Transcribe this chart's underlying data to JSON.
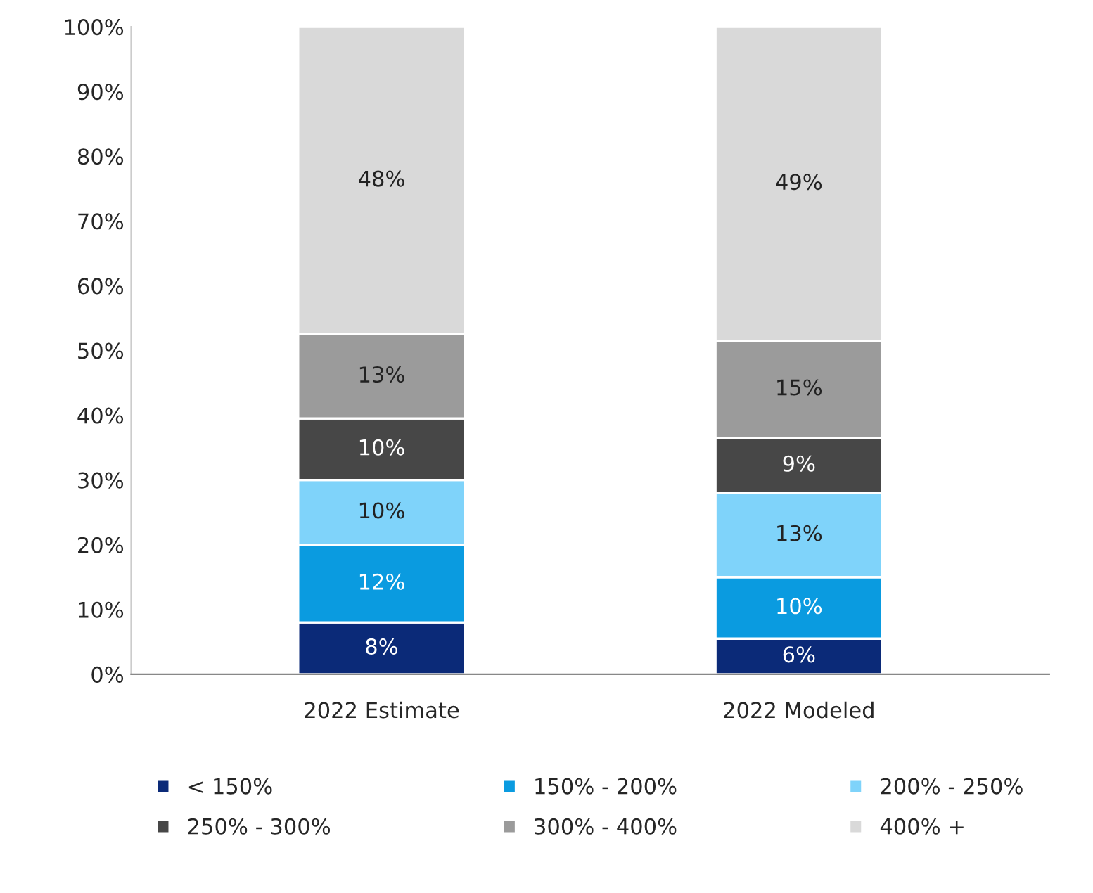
{
  "chart_data": {
    "type": "bar",
    "stacked": true,
    "categories": [
      "2022 Estimate",
      "2022 Modeled"
    ],
    "series": [
      {
        "name": "< 150%",
        "color": "#0b2a78",
        "values": [
          8,
          5.5
        ],
        "value_labels": [
          "8%",
          "6%"
        ]
      },
      {
        "name": "150% - 200%",
        "color": "#0a9be0",
        "values": [
          12,
          9.5
        ],
        "value_labels": [
          "12%",
          "10%"
        ]
      },
      {
        "name": "200% - 250%",
        "color": "#7fd3fa",
        "values": [
          10,
          13
        ],
        "value_labels": [
          "10%",
          "13%"
        ]
      },
      {
        "name": "250% - 300%",
        "color": "#474747",
        "values": [
          9.5,
          8.5
        ],
        "value_labels": [
          "10%",
          "9%"
        ]
      },
      {
        "name": "300% - 400%",
        "color": "#9b9b9b",
        "values": [
          13,
          15
        ],
        "value_labels": [
          "13%",
          "15%"
        ]
      },
      {
        "name": "400% +",
        "color": "#d9d9d9",
        "values": [
          47.5,
          48.5
        ],
        "value_labels": [
          "48%",
          "49%"
        ]
      }
    ],
    "ylim": [
      0,
      100
    ],
    "yticks": [
      {
        "value": 0,
        "label": "0%"
      },
      {
        "value": 10,
        "label": "10%"
      },
      {
        "value": 20,
        "label": "20%"
      },
      {
        "value": 30,
        "label": "30%"
      },
      {
        "value": 40,
        "label": "40%"
      },
      {
        "value": 50,
        "label": "50%"
      },
      {
        "value": 60,
        "label": "60%"
      },
      {
        "value": 70,
        "label": "70%"
      },
      {
        "value": 80,
        "label": "80%"
      },
      {
        "value": 90,
        "label": "90%"
      },
      {
        "value": 100,
        "label": "100%"
      }
    ],
    "grid": false,
    "legend": "bottom"
  }
}
